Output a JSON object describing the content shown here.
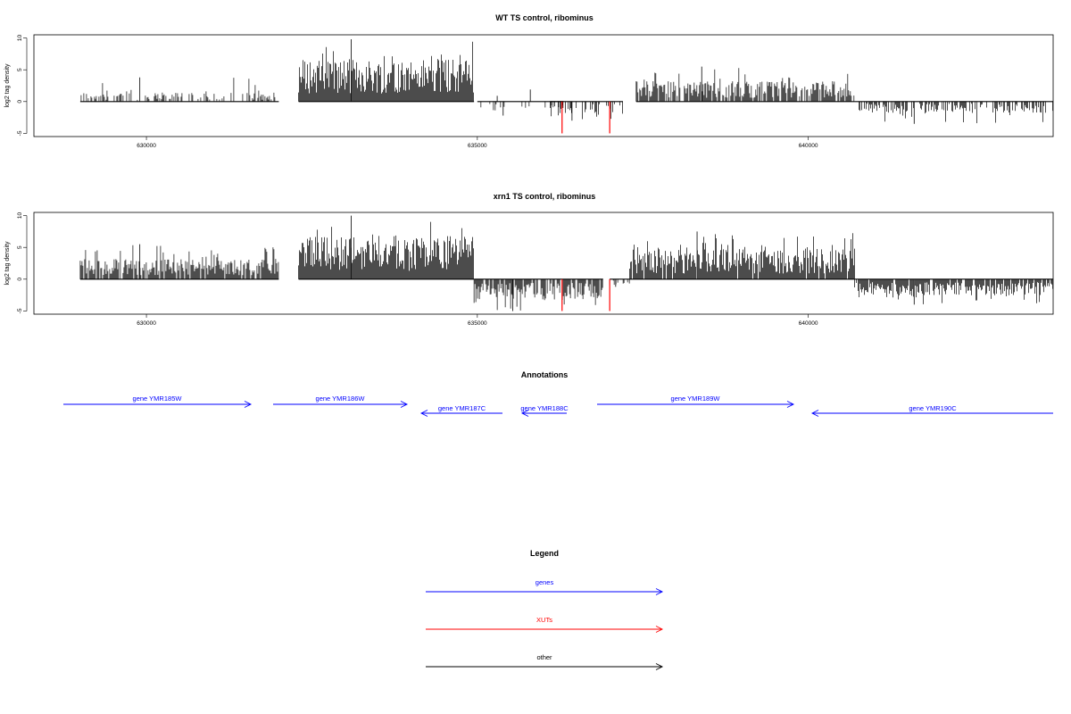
{
  "chart_data": [
    {
      "type": "bar",
      "title": "WT TS control, ribominus",
      "xlabel": "",
      "ylabel": "log2 tag density",
      "xlim": [
        628300,
        643700
      ],
      "ylim": [
        -5.5,
        10.5
      ],
      "yticks": [
        -5,
        0,
        5,
        10
      ],
      "xticks": [
        630000,
        635000,
        640000
      ],
      "xtick_labels": [
        "630000",
        "635000",
        "640000"
      ],
      "grid": false,
      "series": [
        {
          "color": "#000000",
          "segments": [
            {
              "start": 629000,
              "end": 632000,
              "strand": "+",
              "mean": 0.9,
              "peak": 3.8,
              "density": 0.45
            },
            {
              "start": 632300,
              "end": 634950,
              "strand": "+",
              "mean": 4.2,
              "peak": 9.8,
              "density": 1.0
            },
            {
              "start": 635000,
              "end": 636300,
              "strand": "-",
              "mean": -0.9,
              "peak": -2.2,
              "density": 0.15
            },
            {
              "start": 636100,
              "end": 637200,
              "strand": "-",
              "mean": -1.2,
              "peak": -3.0,
              "density": 0.3
            },
            {
              "start": 637400,
              "end": 640700,
              "strand": "+",
              "mean": 2.0,
              "peak": 5.5,
              "density": 0.8
            },
            {
              "start": 640700,
              "end": 643700,
              "strand": "-",
              "mean": -1.1,
              "peak": -3.5,
              "density": 0.6
            }
          ],
          "single_values": [
            {
              "x": 635300,
              "y": 0.9
            },
            {
              "x": 635800,
              "y": 1.9
            }
          ]
        },
        {
          "color": "#ff0000",
          "values": [
            {
              "x": 636280,
              "y": -5.0
            },
            {
              "x": 637000,
              "y": -5.0
            }
          ]
        }
      ]
    },
    {
      "type": "bar",
      "title": "xrn1 TS control, ribominus",
      "xlabel": "",
      "ylabel": "log2 tag density",
      "xlim": [
        628300,
        643700
      ],
      "ylim": [
        -5.5,
        10.5
      ],
      "yticks": [
        -5,
        0,
        5,
        10
      ],
      "xticks": [
        630000,
        635000,
        640000
      ],
      "xtick_labels": [
        "630000",
        "635000",
        "640000"
      ],
      "grid": false,
      "series": [
        {
          "color": "#000000",
          "segments": [
            {
              "start": 629000,
              "end": 632000,
              "strand": "+",
              "mean": 2.0,
              "peak": 5.5,
              "density": 0.9
            },
            {
              "start": 632300,
              "end": 634950,
              "strand": "+",
              "mean": 4.3,
              "peak": 10.0,
              "density": 1.0
            },
            {
              "start": 634950,
              "end": 636900,
              "strand": "-",
              "mean": -2.0,
              "peak": -5.0,
              "density": 0.8
            },
            {
              "start": 637000,
              "end": 637300,
              "strand": "-",
              "mean": -0.6,
              "peak": -1.2,
              "density": 0.3
            },
            {
              "start": 637300,
              "end": 640700,
              "strand": "+",
              "mean": 3.0,
              "peak": 7.5,
              "density": 0.95
            },
            {
              "start": 640700,
              "end": 643700,
              "strand": "-",
              "mean": -1.6,
              "peak": -4.0,
              "density": 0.85
            }
          ]
        },
        {
          "color": "#ff0000",
          "values": [
            {
              "x": 636280,
              "y": -5.0
            },
            {
              "x": 637000,
              "y": -5.0
            }
          ]
        }
      ]
    }
  ],
  "annotations": {
    "title": "Annotations",
    "genes": [
      {
        "label": "gene YMR185W",
        "direction": "right",
        "row": 0
      },
      {
        "label": "gene YMR186W",
        "direction": "right",
        "row": 0
      },
      {
        "label": "gene YMR187C",
        "direction": "left",
        "row": 1
      },
      {
        "label": "gene YMR188C",
        "direction": "left",
        "row": 1
      },
      {
        "label": "gene YMR189W",
        "direction": "right",
        "row": 0
      },
      {
        "label": "gene YMR190C",
        "direction": "left",
        "row": 1
      }
    ],
    "color": "#0000ff"
  },
  "legend": {
    "title": "Legend",
    "items": [
      {
        "label": "genes",
        "color": "#0000ff"
      },
      {
        "label": "XUTs",
        "color": "#ff0000"
      },
      {
        "label": "other",
        "color": "#000000"
      }
    ]
  }
}
